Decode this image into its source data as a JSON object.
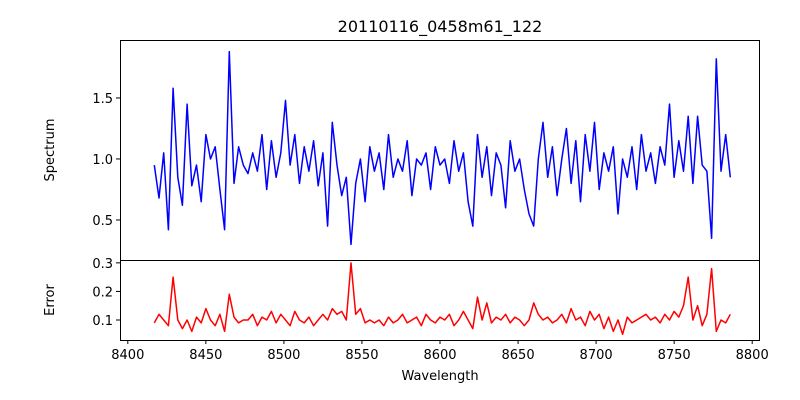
{
  "chart_data": [
    {
      "type": "line",
      "title": "20110116_0458m61_122",
      "xlabel": "",
      "ylabel": "Spectrum",
      "xlim": [
        8395,
        8805
      ],
      "ylim": [
        0.172,
        1.975
      ],
      "yticks": [
        0.5,
        1.0,
        1.5
      ],
      "ytick_labels": [
        "0.5",
        "1.0",
        "1.5"
      ],
      "color": "#0000ff",
      "x_start": 8417,
      "x_step": 3,
      "values": [
        0.95,
        0.68,
        1.05,
        0.42,
        1.58,
        0.85,
        0.62,
        1.45,
        0.78,
        0.95,
        0.65,
        1.2,
        1.0,
        1.1,
        0.75,
        0.42,
        1.88,
        0.8,
        1.1,
        0.95,
        0.88,
        1.05,
        0.9,
        1.2,
        0.75,
        1.15,
        0.85,
        1.05,
        1.48,
        0.95,
        1.2,
        0.8,
        1.1,
        0.9,
        1.15,
        0.78,
        1.05,
        0.45,
        1.3,
        0.95,
        0.7,
        0.85,
        0.3,
        0.8,
        1.0,
        0.65,
        1.1,
        0.9,
        1.05,
        0.75,
        1.2,
        0.85,
        1.0,
        0.9,
        1.15,
        0.7,
        1.0,
        0.95,
        1.05,
        0.75,
        1.1,
        0.95,
        1.0,
        0.8,
        1.15,
        0.9,
        1.05,
        0.65,
        0.45,
        1.2,
        0.85,
        1.1,
        0.7,
        1.05,
        0.95,
        0.6,
        1.15,
        0.9,
        1.0,
        0.75,
        0.55,
        0.45,
        1.0,
        1.3,
        0.85,
        1.1,
        0.7,
        1.0,
        1.25,
        0.8,
        1.15,
        0.65,
        1.2,
        0.9,
        1.3,
        0.75,
        1.05,
        0.9,
        1.1,
        0.55,
        1.0,
        0.85,
        1.1,
        0.75,
        1.2,
        0.9,
        1.05,
        0.8,
        1.1,
        0.95,
        1.45,
        0.85,
        1.15,
        0.9,
        1.35,
        0.8,
        1.35,
        0.95,
        0.9,
        0.35,
        1.82,
        0.9,
        1.2,
        0.85
      ]
    },
    {
      "type": "line",
      "title": "",
      "xlabel": "Wavelength",
      "ylabel": "Error",
      "xlim": [
        8395,
        8805
      ],
      "ylim": [
        0.03,
        0.31
      ],
      "xticks": [
        8400,
        8450,
        8500,
        8550,
        8600,
        8650,
        8700,
        8750,
        8800
      ],
      "xtick_labels": [
        "8400",
        "8450",
        "8500",
        "8550",
        "8600",
        "8650",
        "8700",
        "8750",
        "8800"
      ],
      "yticks": [
        0.1,
        0.2,
        0.3
      ],
      "ytick_labels": [
        "0.1",
        "0.2",
        "0.3"
      ],
      "color": "#ff0000",
      "x_start": 8417,
      "x_step": 3,
      "values": [
        0.09,
        0.12,
        0.1,
        0.08,
        0.25,
        0.1,
        0.07,
        0.1,
        0.06,
        0.11,
        0.09,
        0.14,
        0.1,
        0.08,
        0.12,
        0.06,
        0.19,
        0.11,
        0.09,
        0.1,
        0.1,
        0.12,
        0.08,
        0.11,
        0.1,
        0.13,
        0.09,
        0.12,
        0.1,
        0.08,
        0.13,
        0.1,
        0.09,
        0.11,
        0.08,
        0.1,
        0.12,
        0.1,
        0.14,
        0.12,
        0.13,
        0.1,
        0.3,
        0.12,
        0.14,
        0.09,
        0.1,
        0.09,
        0.1,
        0.08,
        0.11,
        0.09,
        0.1,
        0.12,
        0.09,
        0.1,
        0.11,
        0.08,
        0.12,
        0.1,
        0.09,
        0.11,
        0.1,
        0.12,
        0.08,
        0.1,
        0.13,
        0.1,
        0.07,
        0.18,
        0.1,
        0.16,
        0.09,
        0.11,
        0.1,
        0.12,
        0.09,
        0.11,
        0.1,
        0.08,
        0.1,
        0.16,
        0.12,
        0.1,
        0.11,
        0.09,
        0.1,
        0.12,
        0.09,
        0.14,
        0.1,
        0.11,
        0.08,
        0.13,
        0.1,
        0.12,
        0.07,
        0.11,
        0.06,
        0.1,
        0.05,
        0.11,
        0.09,
        0.1,
        0.11,
        0.12,
        0.1,
        0.11,
        0.09,
        0.12,
        0.1,
        0.13,
        0.11,
        0.15,
        0.25,
        0.1,
        0.15,
        0.08,
        0.12,
        0.28,
        0.06,
        0.1,
        0.09,
        0.12
      ]
    }
  ]
}
